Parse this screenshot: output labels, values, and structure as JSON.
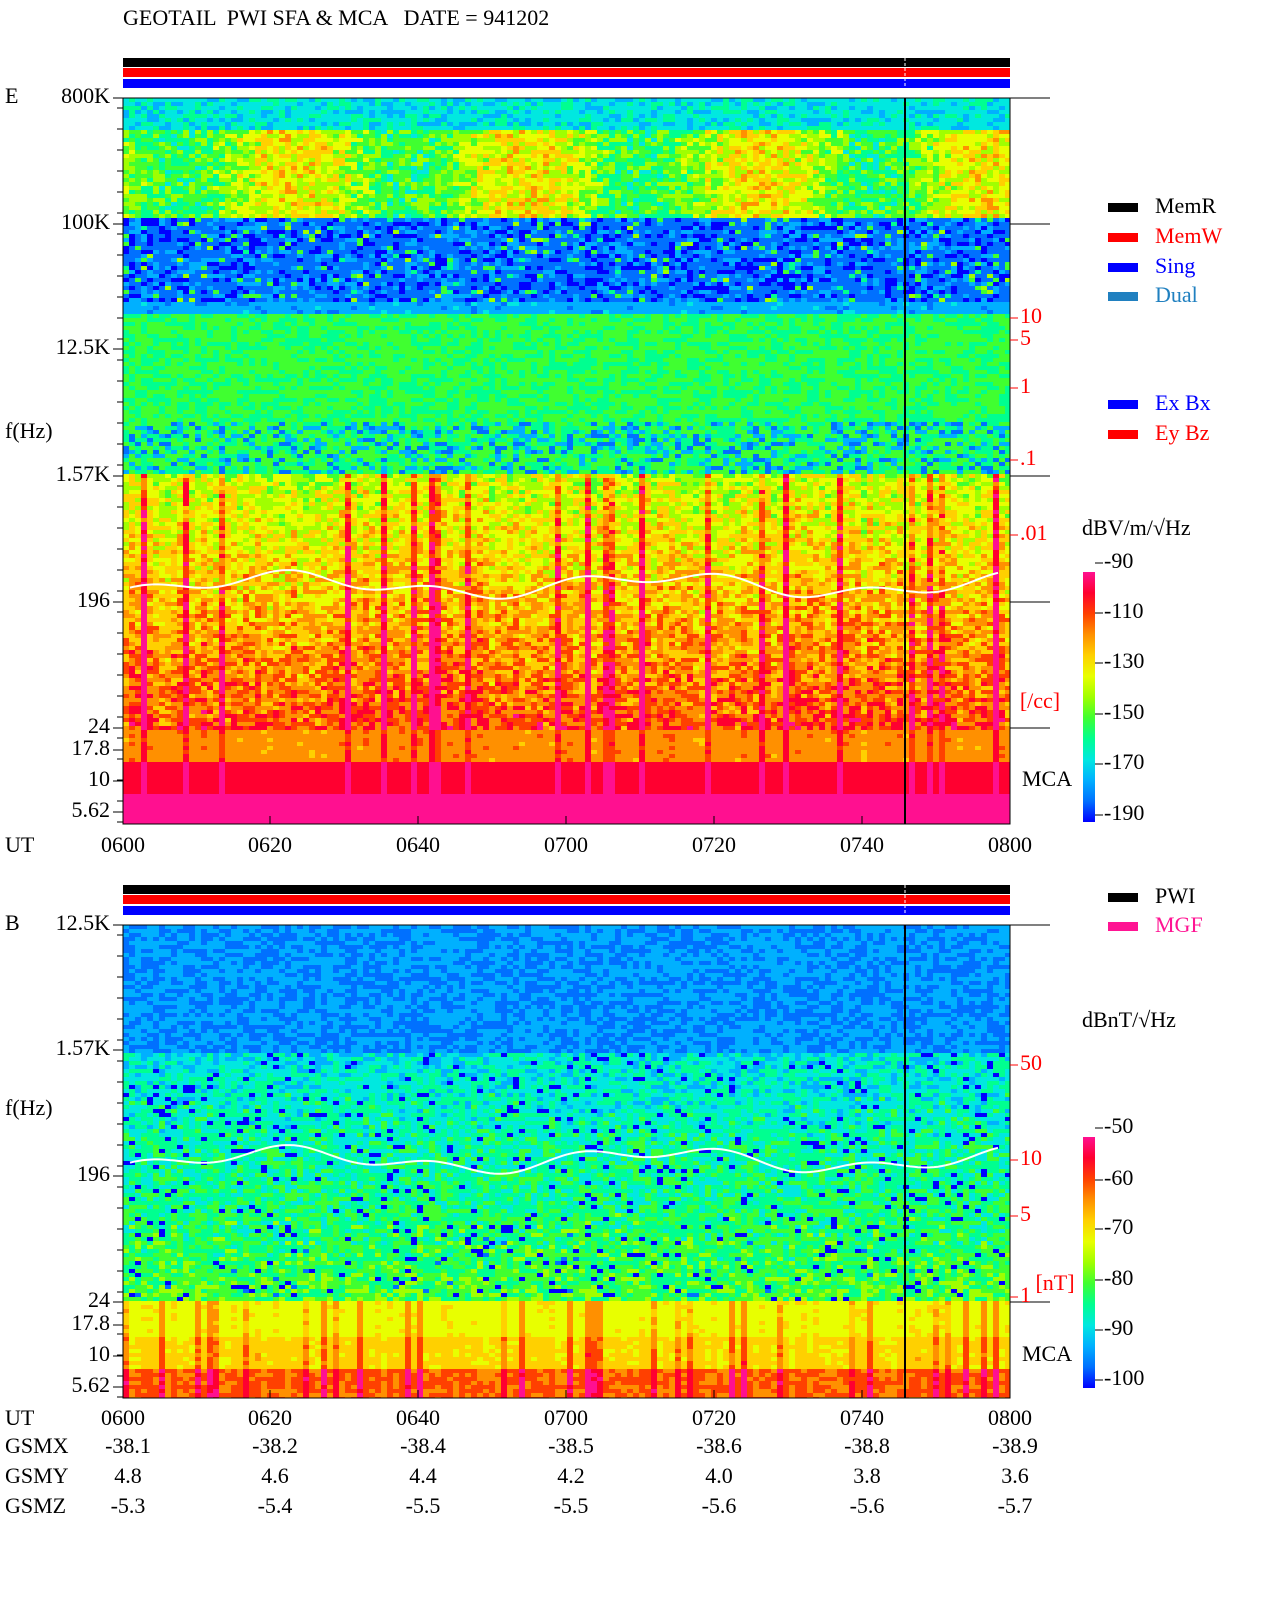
{
  "header": {
    "title": "GEOTAIL  PWI SFA & MCA   DATE = 941202"
  },
  "panels": [
    {
      "label": "E",
      "ylabel": "f(Hz)",
      "freq_ticks": [
        "800K",
        "100K",
        "12.5K",
        "1.57K",
        "196",
        "24",
        "17.8",
        "10",
        "5.62"
      ],
      "density_ticks": [
        "10",
        "5",
        "1",
        ".1",
        ".01"
      ],
      "density_unit": "[/cc]",
      "mca": "MCA",
      "time_label": "UT",
      "time_ticks": [
        "0600",
        "0620",
        "0640",
        "0700",
        "0720",
        "0740",
        "0800"
      ],
      "colorbar_unit": "dBV/m/√Hz",
      "colorbar_ticks": [
        -90,
        -110,
        -130,
        -150,
        -170,
        -190
      ],
      "legend": [
        {
          "name": "MemR",
          "color": "#000000"
        },
        {
          "name": "MemW",
          "color": "#ff0000"
        },
        {
          "name": "Sing",
          "color": "#0000ff"
        },
        {
          "name": "Dual",
          "color": "#2080c0"
        }
      ],
      "legend2": [
        {
          "name": "Ex Bx",
          "color": "#0000ff"
        },
        {
          "name": "Ey Bz",
          "color": "#ff0000"
        }
      ]
    },
    {
      "label": "B",
      "ylabel": "f(Hz)",
      "freq_ticks": [
        "12.5K",
        "1.57K",
        "196",
        "24",
        "17.8",
        "10",
        "5.62"
      ],
      "density_ticks": [
        "50",
        "10",
        "5",
        "1"
      ],
      "density_unit": "[nT]",
      "mca": "MCA",
      "time_label": "UT",
      "time_ticks": [
        "0600",
        "0620",
        "0640",
        "0700",
        "0720",
        "0740",
        "0800"
      ],
      "colorbar_unit": "dBnT/√Hz",
      "colorbar_ticks": [
        -50,
        -60,
        -70,
        -80,
        -90,
        -100
      ],
      "legend": [
        {
          "name": "PWI",
          "color": "#000000"
        },
        {
          "name": "MGF",
          "color": "#ff1493"
        }
      ],
      "legend2": []
    }
  ],
  "orbit": {
    "rows": [
      {
        "label": "GSMX",
        "values": [
          "-38.1",
          "-38.2",
          "-38.4",
          "-38.5",
          "-38.6",
          "-38.8",
          "-38.9"
        ]
      },
      {
        "label": "GSMY",
        "values": [
          "4.8",
          "4.6",
          "4.4",
          "4.2",
          "4.0",
          "3.8",
          "3.6"
        ]
      },
      {
        "label": "GSMZ",
        "values": [
          "-5.3",
          "-5.4",
          "-5.5",
          "-5.5",
          "-5.6",
          "-5.6",
          "-5.7"
        ]
      }
    ]
  }
}
